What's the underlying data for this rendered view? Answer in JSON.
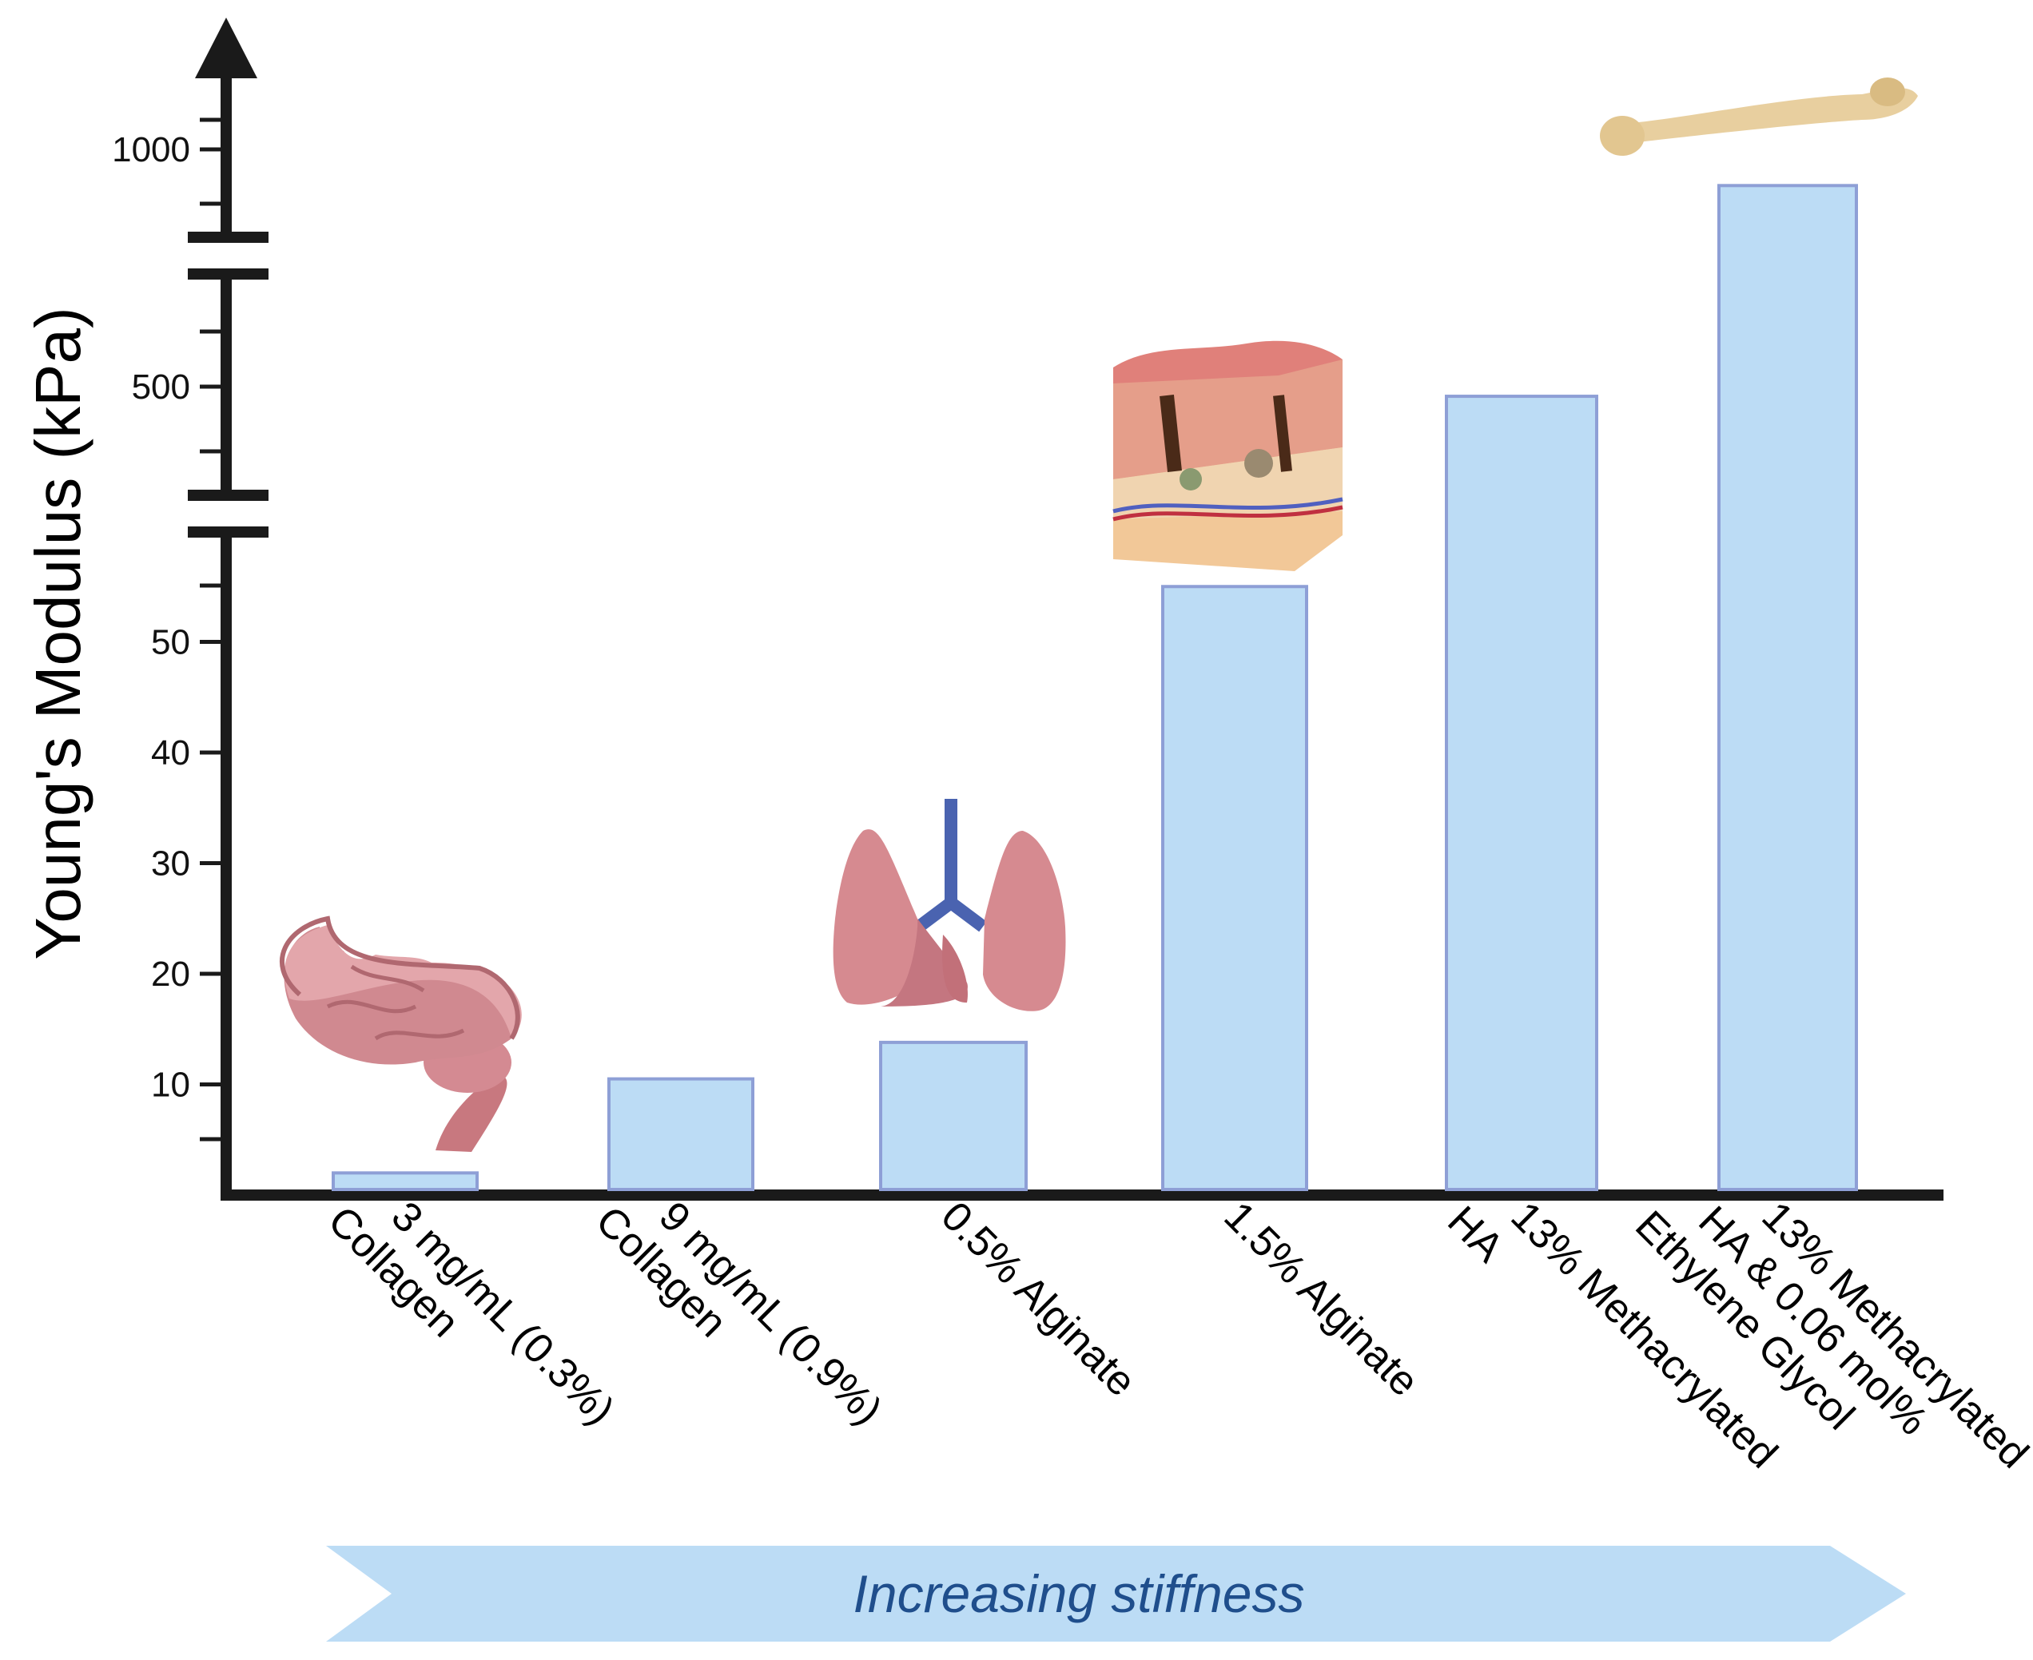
{
  "chart_data": {
    "type": "bar",
    "ylabel": "Young's Modulus (kPa)",
    "axis_breaks": true,
    "y_ticks": [
      10,
      20,
      30,
      40,
      50,
      500,
      1000
    ],
    "categories": [
      [
        "3 mg/mL (0.3%)",
        "Collagen"
      ],
      [
        "9 mg/mL (0.9%)",
        "Collagen"
      ],
      [
        "0.5% Alginate"
      ],
      [
        "1.5% Alginate"
      ],
      [
        "13% Methacrylated",
        "HA"
      ],
      [
        "13% Methacrylated",
        "HA & 0.06 mol%",
        "Ethylene Glycol"
      ]
    ],
    "values": [
      2,
      10.5,
      13.8,
      55,
      480,
      925
    ],
    "tissue_icons": [
      "brain-icon",
      "lung-icon",
      "skin-icon",
      "bone-icon"
    ],
    "banner": "Increasing stiffness"
  },
  "colors": {
    "bar_fill": "#bcdcf5",
    "bar_stroke": "#8e9fd6",
    "axis": "#1a1a1a",
    "banner_fill": "#bcdcf5",
    "banner_text": "#1f4e8c"
  }
}
